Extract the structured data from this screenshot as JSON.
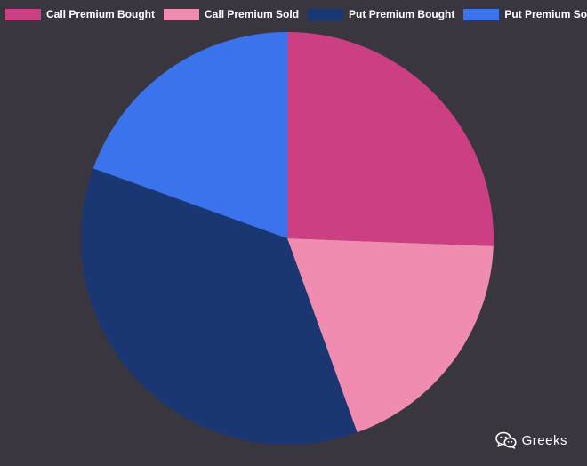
{
  "chart_data": {
    "type": "pie",
    "categories": [
      "Call Premium Bought",
      "Call Premium Sold",
      "Put Premium Bought",
      "Put Premium Sold"
    ],
    "values": [
      25.6,
      18.9,
      36.0,
      19.5
    ],
    "colors": [
      "#cc3f83",
      "#ef8caf",
      "#1a3673",
      "#3a73ec"
    ],
    "legend_position": "top",
    "title": ""
  },
  "watermark": {
    "icon": "wechat-icon",
    "text": "Greeks"
  }
}
